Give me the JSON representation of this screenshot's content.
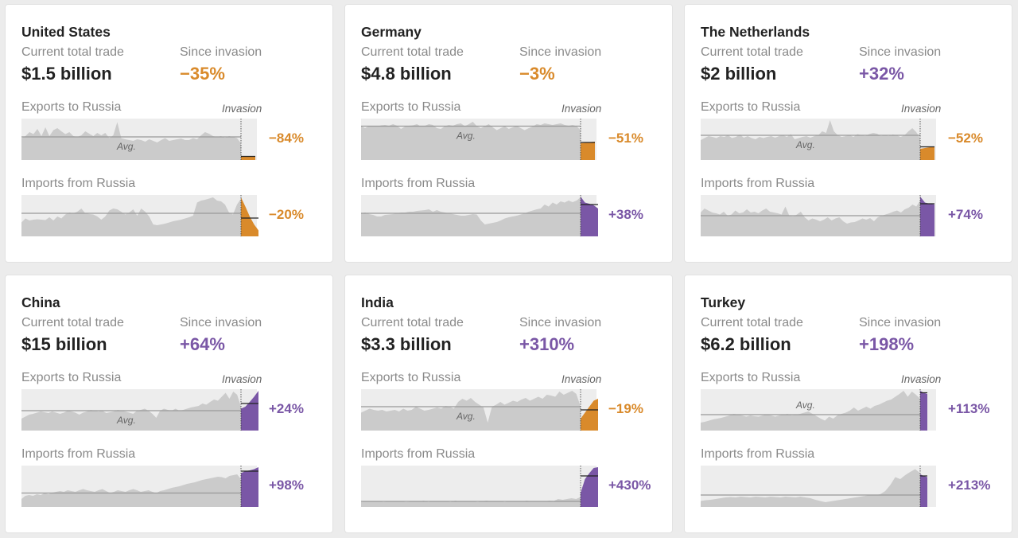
{
  "colors": {
    "negative": "#d98a2b",
    "positive": "#7a57a6",
    "area": "#cbcbcb",
    "plot_bg": "#ededed",
    "avg_line": "#999999"
  },
  "labels": {
    "current_total_trade": "Current total trade",
    "since_invasion": "Since invasion",
    "exports": "Exports to Russia",
    "imports": "Imports from Russia",
    "invasion": "Invasion",
    "avg": "Avg."
  },
  "chart_data": [
    {
      "type": "area",
      "title": "United States",
      "current_total_trade": "$1.5 billion",
      "since_invasion": "−35%",
      "since_invasion_direction": "negative",
      "series": [
        {
          "name": "Exports to Russia",
          "change_label": "−84%",
          "direction": "negative",
          "pre_invasion_relative_to_max": [
            0.55,
            0.6,
            0.7,
            0.65,
            0.78,
            0.6,
            0.82,
            0.6,
            0.75,
            0.8,
            0.72,
            0.65,
            0.7,
            0.6,
            0.58,
            0.62,
            0.72,
            0.66,
            0.6,
            0.68,
            0.62,
            0.68,
            0.55,
            0.62,
            0.95,
            0.55,
            0.52,
            0.5,
            0.48,
            0.52,
            0.5,
            0.46,
            0.52,
            0.48,
            0.44,
            0.5,
            0.55,
            0.48,
            0.5,
            0.52,
            0.54,
            0.5,
            0.5,
            0.55,
            0.52,
            0.62,
            0.7,
            0.66,
            0.6,
            0.58,
            0.6,
            0.56,
            0.6,
            0.58,
            0.55,
            0.42
          ],
          "post_invasion_relative_to_max": [
            0.09,
            0.09,
            0.09,
            0.1
          ],
          "avg_relative_to_max": 0.58,
          "post_avg_relative_to_max": 0.09
        },
        {
          "name": "Imports from Russia",
          "change_label": "−20%",
          "direction": "negative",
          "pre_invasion_relative_to_max": [
            0.35,
            0.45,
            0.4,
            0.42,
            0.43,
            0.42,
            0.41,
            0.48,
            0.4,
            0.5,
            0.45,
            0.55,
            0.6,
            0.58,
            0.62,
            0.7,
            0.58,
            0.56,
            0.55,
            0.5,
            0.42,
            0.5,
            0.65,
            0.7,
            0.68,
            0.62,
            0.55,
            0.6,
            0.68,
            0.52,
            0.7,
            0.62,
            0.5,
            0.3,
            0.28,
            0.3,
            0.32,
            0.35,
            0.38,
            0.4,
            0.42,
            0.45,
            0.48,
            0.52,
            0.85,
            0.9,
            0.92,
            0.95,
            0.98,
            0.9,
            0.88,
            0.8,
            0.6,
            0.55,
            0.8,
            0.95
          ],
          "post_invasion_relative_to_max": [
            0.98,
            0.75,
            0.5,
            0.3,
            0.15
          ],
          "avg_relative_to_max": 0.58,
          "post_avg_relative_to_max": 0.46
        }
      ]
    },
    {
      "type": "area",
      "title": "Germany",
      "current_total_trade": "$4.8 billion",
      "since_invasion": "−3%",
      "since_invasion_direction": "negative",
      "series": [
        {
          "name": "Exports to Russia",
          "change_label": "−51%",
          "direction": "negative",
          "pre_invasion_relative_to_max": [
            0.85,
            0.8,
            0.86,
            0.85,
            0.84,
            0.87,
            0.88,
            0.86,
            0.9,
            0.86,
            0.78,
            0.84,
            0.86,
            0.87,
            0.9,
            0.84,
            0.86,
            0.9,
            0.88,
            0.8,
            0.78,
            0.85,
            0.88,
            0.86,
            0.9,
            0.92,
            0.85,
            0.9,
            0.96,
            0.85,
            0.8,
            0.85,
            0.9,
            0.82,
            0.75,
            0.8,
            0.85,
            0.78,
            0.82,
            0.86,
            0.8,
            0.75,
            0.8,
            0.84,
            0.9,
            0.88,
            0.92,
            0.9,
            0.88,
            0.9,
            0.92,
            0.88,
            0.86,
            0.88,
            0.85,
            0.75
          ],
          "post_invasion_relative_to_max": [
            0.42,
            0.43,
            0.45,
            0.46
          ],
          "avg_relative_to_max": 0.85,
          "post_avg_relative_to_max": 0.44
        },
        {
          "name": "Imports from Russia",
          "change_label": "+38%",
          "direction": "positive",
          "pre_invasion_relative_to_max": [
            0.58,
            0.6,
            0.56,
            0.54,
            0.5,
            0.5,
            0.54,
            0.55,
            0.56,
            0.58,
            0.6,
            0.6,
            0.62,
            0.62,
            0.64,
            0.65,
            0.66,
            0.68,
            0.62,
            0.66,
            0.62,
            0.6,
            0.58,
            0.56,
            0.54,
            0.52,
            0.52,
            0.54,
            0.56,
            0.55,
            0.4,
            0.3,
            0.32,
            0.34,
            0.36,
            0.4,
            0.45,
            0.48,
            0.5,
            0.52,
            0.55,
            0.58,
            0.62,
            0.65,
            0.68,
            0.7,
            0.8,
            0.75,
            0.85,
            0.8,
            0.88,
            0.85,
            0.9,
            0.86,
            0.9,
            0.98
          ],
          "post_invasion_relative_to_max": [
            1.0,
            0.85,
            0.82,
            0.78,
            0.7
          ],
          "avg_relative_to_max": 0.58,
          "post_avg_relative_to_max": 0.8
        }
      ]
    },
    {
      "type": "area",
      "title": "The Netherlands",
      "current_total_trade": "$2 billion",
      "since_invasion": "+32%",
      "since_invasion_direction": "positive",
      "series": [
        {
          "name": "Exports to Russia",
          "change_label": "−52%",
          "direction": "negative",
          "pre_invasion_relative_to_max": [
            0.5,
            0.55,
            0.6,
            0.58,
            0.55,
            0.6,
            0.58,
            0.62,
            0.55,
            0.58,
            0.64,
            0.56,
            0.6,
            0.55,
            0.52,
            0.58,
            0.55,
            0.58,
            0.6,
            0.56,
            0.6,
            0.62,
            0.58,
            0.65,
            0.52,
            0.55,
            0.58,
            0.6,
            0.56,
            0.6,
            0.62,
            0.72,
            0.68,
            1.0,
            0.72,
            0.62,
            0.58,
            0.6,
            0.62,
            0.58,
            0.65,
            0.62,
            0.6,
            0.65,
            0.68,
            0.66,
            0.6,
            0.62,
            0.6,
            0.64,
            0.62,
            0.58,
            0.62,
            0.72,
            0.8,
            0.7,
            0.55
          ],
          "post_invasion_relative_to_max": [
            0.28,
            0.3,
            0.32,
            0.34
          ],
          "avg_relative_to_max": 0.62,
          "post_avg_relative_to_max": 0.33
        },
        {
          "name": "Imports from Russia",
          "change_label": "+74%",
          "direction": "positive",
          "pre_invasion_relative_to_max": [
            0.6,
            0.7,
            0.65,
            0.6,
            0.58,
            0.55,
            0.62,
            0.52,
            0.55,
            0.65,
            0.58,
            0.6,
            0.68,
            0.6,
            0.62,
            0.58,
            0.65,
            0.7,
            0.62,
            0.6,
            0.58,
            0.55,
            0.75,
            0.52,
            0.5,
            0.55,
            0.62,
            0.48,
            0.4,
            0.45,
            0.42,
            0.38,
            0.42,
            0.48,
            0.4,
            0.45,
            0.48,
            0.38,
            0.32,
            0.35,
            0.36,
            0.4,
            0.45,
            0.42,
            0.46,
            0.38,
            0.48,
            0.52,
            0.55,
            0.58,
            0.62,
            0.65,
            0.6,
            0.68,
            0.72,
            0.8,
            0.75,
            0.9
          ],
          "post_invasion_relative_to_max": [
            1.0,
            0.85,
            0.82,
            0.8
          ],
          "avg_relative_to_max": 0.52,
          "post_avg_relative_to_max": 0.82
        }
      ]
    },
    {
      "type": "area",
      "title": "China",
      "current_total_trade": "$15 billion",
      "since_invasion": "+64%",
      "since_invasion_direction": "positive",
      "series": [
        {
          "name": "Exports to Russia",
          "change_label": "+24%",
          "direction": "positive",
          "pre_invasion_relative_to_max": [
            0.3,
            0.35,
            0.4,
            0.42,
            0.45,
            0.48,
            0.46,
            0.44,
            0.48,
            0.45,
            0.42,
            0.45,
            0.5,
            0.48,
            0.45,
            0.4,
            0.45,
            0.48,
            0.52,
            0.5,
            0.48,
            0.5,
            0.44,
            0.46,
            0.48,
            0.52,
            0.5,
            0.48,
            0.45,
            0.42,
            0.5,
            0.52,
            0.55,
            0.5,
            0.42,
            0.32,
            0.5,
            0.55,
            0.52,
            0.5,
            0.55,
            0.5,
            0.52,
            0.55,
            0.58,
            0.6,
            0.62,
            0.68,
            0.65,
            0.72,
            0.78,
            0.75,
            0.85,
            0.95,
            0.8,
            0.98,
            0.9,
            0.6
          ],
          "post_invasion_relative_to_max": [
            0.55,
            0.6,
            0.72,
            0.85,
            1.0
          ],
          "avg_relative_to_max": 0.5,
          "post_avg_relative_to_max": 0.68
        },
        {
          "name": "Imports from Russia",
          "change_label": "+98%",
          "direction": "positive",
          "pre_invasion_relative_to_max": [
            0.2,
            0.28,
            0.3,
            0.28,
            0.32,
            0.3,
            0.35,
            0.32,
            0.36,
            0.38,
            0.4,
            0.38,
            0.42,
            0.4,
            0.38,
            0.42,
            0.45,
            0.42,
            0.4,
            0.38,
            0.42,
            0.45,
            0.4,
            0.35,
            0.38,
            0.42,
            0.4,
            0.38,
            0.42,
            0.45,
            0.42,
            0.38,
            0.4,
            0.42,
            0.38,
            0.35,
            0.4,
            0.42,
            0.45,
            0.48,
            0.5,
            0.52,
            0.55,
            0.58,
            0.6,
            0.62,
            0.65,
            0.68,
            0.7,
            0.72,
            0.74,
            0.76,
            0.75,
            0.72,
            0.78,
            0.8,
            0.82,
            0.7
          ],
          "post_invasion_relative_to_max": [
            0.85,
            0.9,
            0.92,
            0.95,
            1.0
          ],
          "avg_relative_to_max": 0.35,
          "post_avg_relative_to_max": 0.9
        }
      ]
    },
    {
      "type": "area",
      "title": "India",
      "current_total_trade": "$3.3 billion",
      "since_invasion": "+310%",
      "since_invasion_direction": "positive",
      "series": [
        {
          "name": "Exports to Russia",
          "change_label": "−19%",
          "direction": "negative",
          "pre_invasion_relative_to_max": [
            0.45,
            0.5,
            0.55,
            0.52,
            0.5,
            0.52,
            0.48,
            0.5,
            0.52,
            0.48,
            0.55,
            0.5,
            0.52,
            0.6,
            0.55,
            0.5,
            0.52,
            0.55,
            0.58,
            0.55,
            0.62,
            0.6,
            0.55,
            0.72,
            0.8,
            0.75,
            0.82,
            0.72,
            0.65,
            0.58,
            0.2,
            0.6,
            0.65,
            0.72,
            0.65,
            0.7,
            0.75,
            0.72,
            0.78,
            0.82,
            0.75,
            0.8,
            0.85,
            0.8,
            0.9,
            0.88,
            0.85,
            0.98,
            0.9,
            0.95,
            1.0,
            0.92,
            0.6
          ],
          "post_invasion_relative_to_max": [
            0.3,
            0.45,
            0.6,
            0.75,
            0.8
          ],
          "avg_relative_to_max": 0.6,
          "post_avg_relative_to_max": 0.52
        },
        {
          "name": "Imports from Russia",
          "change_label": "+430%",
          "direction": "positive",
          "pre_invasion_relative_to_max": [
            0.12,
            0.14,
            0.15,
            0.14,
            0.15,
            0.12,
            0.14,
            0.13,
            0.15,
            0.14,
            0.12,
            0.13,
            0.15,
            0.14,
            0.16,
            0.12,
            0.14,
            0.13,
            0.15,
            0.14,
            0.12,
            0.16,
            0.14,
            0.13,
            0.15,
            0.14,
            0.12,
            0.14,
            0.16,
            0.14,
            0.13,
            0.15,
            0.12,
            0.14,
            0.15,
            0.13,
            0.14,
            0.16,
            0.14,
            0.15,
            0.13,
            0.14,
            0.16,
            0.15,
            0.2,
            0.18,
            0.2,
            0.22,
            0.2,
            0.25
          ],
          "post_invasion_relative_to_max": [
            0.35,
            0.7,
            0.85,
            0.98,
            1.0
          ],
          "avg_relative_to_max": 0.14,
          "post_avg_relative_to_max": 0.78
        }
      ]
    },
    {
      "type": "area",
      "title": "Turkey",
      "current_total_trade": "$6.2 billion",
      "since_invasion": "+198%",
      "since_invasion_direction": "positive",
      "series": [
        {
          "name": "Exports to Russia",
          "change_label": "+113%",
          "direction": "positive",
          "pre_invasion_relative_to_max": [
            0.2,
            0.22,
            0.25,
            0.28,
            0.3,
            0.32,
            0.35,
            0.38,
            0.42,
            0.4,
            0.38,
            0.35,
            0.38,
            0.36,
            0.35,
            0.38,
            0.4,
            0.38,
            0.35,
            0.38,
            0.4,
            0.42,
            0.38,
            0.4,
            0.42,
            0.45,
            0.48,
            0.42,
            0.36,
            0.3,
            0.25,
            0.35,
            0.3,
            0.38,
            0.42,
            0.45,
            0.5,
            0.58,
            0.5,
            0.55,
            0.6,
            0.55,
            0.62,
            0.65,
            0.7,
            0.75,
            0.78,
            0.85,
            0.92,
            1.0,
            0.85,
            0.98,
            0.9,
            0.8
          ],
          "post_invasion_relative_to_max": [
            1.0,
            0.95,
            0.92
          ],
          "avg_relative_to_max": 0.4,
          "post_avg_relative_to_max": 0.95
        },
        {
          "name": "Imports from Russia",
          "change_label": "+213%",
          "direction": "positive",
          "pre_invasion_relative_to_max": [
            0.15,
            0.17,
            0.18,
            0.2,
            0.22,
            0.24,
            0.25,
            0.24,
            0.26,
            0.25,
            0.24,
            0.26,
            0.25,
            0.24,
            0.26,
            0.25,
            0.24,
            0.26,
            0.25,
            0.24,
            0.26,
            0.24,
            0.22,
            0.18,
            0.15,
            0.12,
            0.14,
            0.16,
            0.18,
            0.2,
            0.22,
            0.24,
            0.26,
            0.28,
            0.3,
            0.3,
            0.32,
            0.4,
            0.55,
            0.75,
            0.7,
            0.8,
            0.88,
            0.95,
            0.85
          ],
          "post_invasion_relative_to_max": [
            0.82,
            0.78,
            0.75
          ],
          "avg_relative_to_max": 0.3,
          "post_avg_relative_to_max": 0.78
        }
      ]
    }
  ]
}
